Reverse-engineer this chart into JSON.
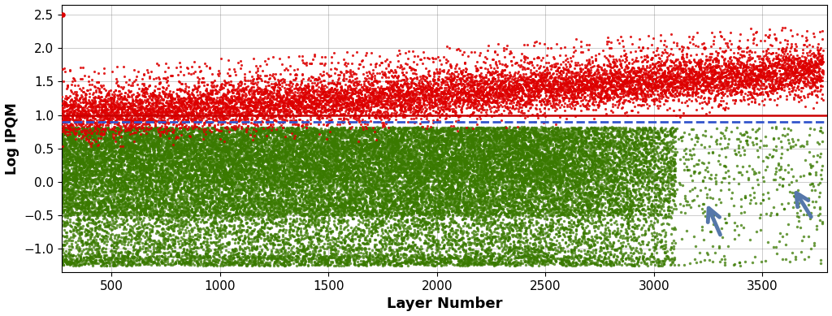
{
  "xlim": [
    270,
    3800
  ],
  "ylim": [
    -1.35,
    2.65
  ],
  "yticks": [
    -1.0,
    -0.5,
    0.0,
    0.5,
    1.0,
    1.5,
    2.0,
    2.5
  ],
  "xticks": [
    500,
    1000,
    1500,
    2000,
    2500,
    3000,
    3500
  ],
  "xlabel": "Layer Number",
  "ylabel": "Log IPQM",
  "red_line_y": 1.0,
  "blue_dashed_y": 0.9,
  "red_color": "#dd0000",
  "green_color": "#3a7a00",
  "red_line_color": "#cc0000",
  "blue_dashed_color": "#3355cc",
  "arrow_color": "#5577aa",
  "seed": 42,
  "n_layers": 3780,
  "start_layer": 270,
  "red_pts_per_layer": 3,
  "green_pts_per_layer_early": 12,
  "green_pts_per_layer_mid": 5,
  "green_pts_per_layer_late": 2,
  "transition1": 2500,
  "transition2": 3100
}
